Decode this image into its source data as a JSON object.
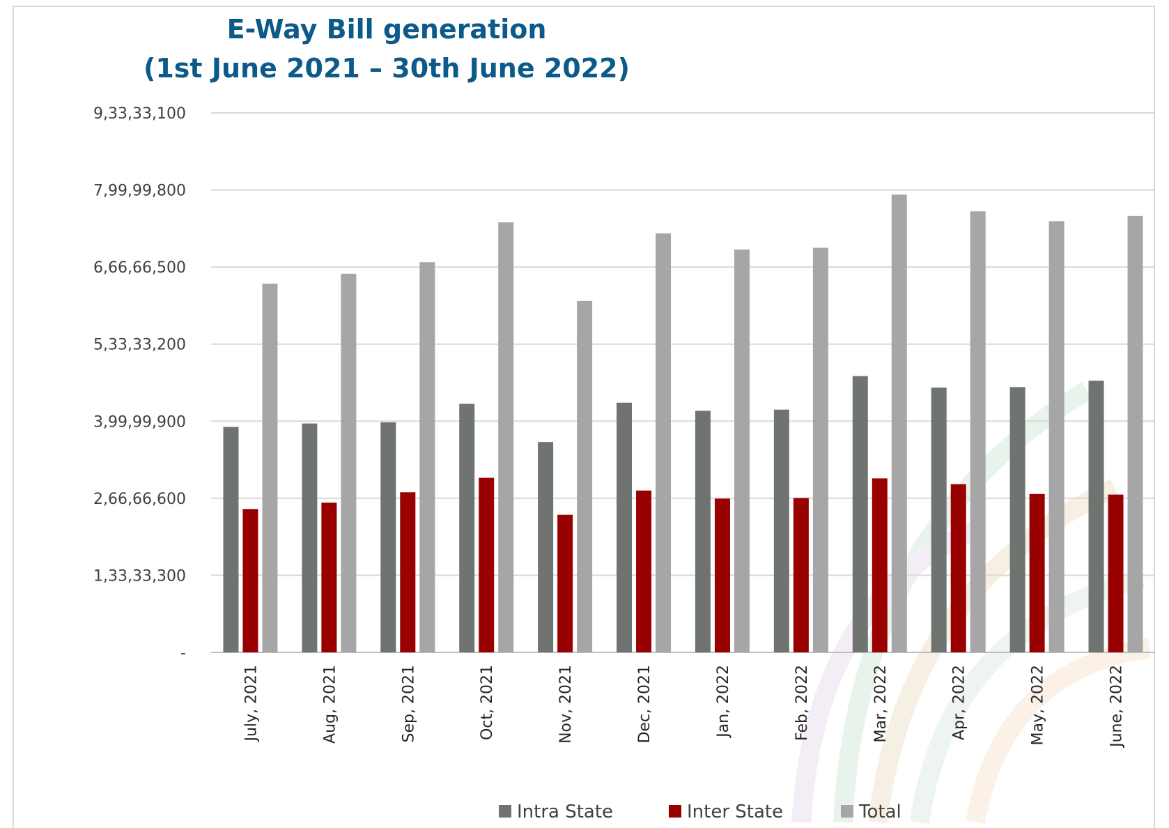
{
  "chart_data": {
    "type": "bar",
    "title": "E-Way Bill generation",
    "subtitle": "(1st June 2021 – 30th June 2022)",
    "xlabel": "",
    "ylabel": "",
    "categories": [
      "July, 2021",
      "Aug, 2021",
      "Sep, 2021",
      "Oct, 2021",
      "Nov, 2021",
      "Dec, 2021",
      "Jan, 2022",
      "Feb, 2022",
      "Mar, 2022",
      "Apr, 2022",
      "May, 2022",
      "June, 2022"
    ],
    "series": [
      {
        "name": "Intra State",
        "color": "#6f7471",
        "values": [
          39000000,
          39600000,
          39800000,
          43000000,
          36400000,
          43200000,
          41800000,
          42000000,
          47800000,
          45800000,
          45900000,
          47000000
        ]
      },
      {
        "name": "Inter State",
        "color": "#990000",
        "values": [
          24800000,
          25900000,
          27700000,
          30200000,
          23800000,
          28000000,
          26600000,
          26700000,
          30100000,
          29100000,
          27400000,
          27300000
        ]
      },
      {
        "name": "Total",
        "color": "#a6a6a6",
        "values": [
          63800000,
          65500000,
          67500000,
          74400000,
          60800000,
          72500000,
          69700000,
          70000000,
          79200000,
          76300000,
          74600000,
          75500000
        ]
      }
    ],
    "ylim": [
      0,
      93333100
    ],
    "yticks": [
      0,
      13333300,
      26666600,
      39999900,
      53333200,
      66666500,
      79999800,
      93333100
    ],
    "ytick_labels": [
      "-",
      "1,33,33,300",
      "2,66,66,600",
      "3,99,99,900",
      "5,33,33,200",
      "6,66,66,500",
      "7,99,99,800",
      "9,33,33,100"
    ],
    "grid": true,
    "legend_position": "bottom"
  }
}
